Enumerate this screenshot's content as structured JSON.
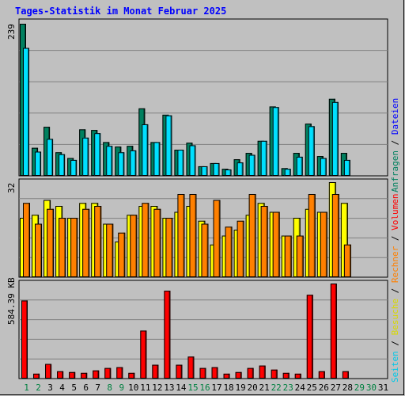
{
  "title": "Tages-Statistik im Monat Februar 2025",
  "colors": {
    "background": "#c0c0c0",
    "title": "#0000ff",
    "anfragen": "#00805f",
    "dateien": "#00e0ff",
    "besuche": "#ffff00",
    "rechner": "#ff8000",
    "volumen": "#ff0000",
    "weekday_label": "#000000",
    "weekend_label": "#008040"
  },
  "chart_data": [
    {
      "type": "bar",
      "panel": "hits_files",
      "axis_max_label": "239",
      "ylim": [
        0,
        239
      ],
      "categories": [
        "1",
        "2",
        "3",
        "4",
        "5",
        "6",
        "7",
        "8",
        "9",
        "10",
        "11",
        "12",
        "13",
        "14",
        "15",
        "16",
        "17",
        "18",
        "19",
        "20",
        "21",
        "22",
        "23",
        "24",
        "25",
        "26",
        "27",
        "28",
        "29",
        "30",
        "31"
      ],
      "series": [
        {
          "name": "Anfragen",
          "values": [
            239,
            44,
            77,
            37,
            28,
            73,
            72,
            53,
            46,
            47,
            106,
            53,
            96,
            41,
            52,
            15,
            20,
            11,
            26,
            36,
            55,
            109,
            12,
            36,
            82,
            31,
            121,
            36,
            0,
            0,
            0
          ]
        },
        {
          "name": "Dateien",
          "values": [
            201,
            38,
            58,
            34,
            25,
            60,
            67,
            47,
            37,
            40,
            81,
            53,
            95,
            41,
            48,
            15,
            20,
            10,
            21,
            33,
            55,
            108,
            11,
            30,
            78,
            28,
            116,
            25,
            0,
            0,
            0
          ]
        }
      ],
      "legend": [
        "Anfragen",
        "Dateien"
      ],
      "grid": true
    },
    {
      "type": "bar",
      "panel": "visits",
      "axis_max_label": "32",
      "ylim": [
        0,
        32
      ],
      "categories": [
        "1",
        "2",
        "3",
        "4",
        "5",
        "6",
        "7",
        "8",
        "9",
        "10",
        "11",
        "12",
        "13",
        "14",
        "15",
        "16",
        "17",
        "18",
        "19",
        "20",
        "21",
        "22",
        "23",
        "24",
        "25",
        "26",
        "27",
        "28",
        "29",
        "30",
        "31"
      ],
      "series": [
        {
          "name": "Seiten",
          "values": [
            20,
            20,
            0,
            0,
            0,
            0,
            0,
            0,
            0,
            0,
            0,
            0,
            0,
            0,
            0,
            0,
            0,
            0,
            0,
            0,
            0,
            0,
            0,
            0,
            0,
            0,
            0,
            0,
            0,
            0,
            0
          ]
        },
        {
          "name": "Besuche",
          "values": [
            20,
            21,
            26,
            24,
            20,
            25,
            25,
            18,
            12,
            21,
            24,
            24,
            20,
            22,
            24,
            19,
            11,
            14,
            16,
            21,
            25,
            22,
            14,
            20,
            23,
            22,
            32,
            25,
            0,
            0,
            0
          ]
        },
        {
          "name": "Rechner",
          "values": [
            25,
            18,
            23,
            20,
            20,
            23,
            24,
            18,
            15,
            21,
            25,
            23,
            20,
            28,
            28,
            18,
            26,
            17,
            19,
            28,
            24,
            22,
            14,
            14,
            28,
            22,
            28,
            11,
            0,
            0,
            0
          ]
        }
      ],
      "legend": [
        "Seiten",
        "Besuche",
        "Rechner"
      ],
      "grid": true
    },
    {
      "type": "bar",
      "panel": "volume",
      "axis_max_label": "584.39 KB",
      "ylim": [
        0,
        584.39
      ],
      "categories": [
        "1",
        "2",
        "3",
        "4",
        "5",
        "6",
        "7",
        "8",
        "9",
        "10",
        "11",
        "12",
        "13",
        "14",
        "15",
        "16",
        "17",
        "18",
        "19",
        "20",
        "21",
        "22",
        "23",
        "24",
        "25",
        "26",
        "27",
        "28",
        "29",
        "30",
        "31"
      ],
      "series": [
        {
          "name": "Volumen",
          "values": [
            480,
            30,
            90,
            45,
            40,
            35,
            50,
            65,
            70,
            35,
            295,
            85,
            540,
            85,
            135,
            65,
            70,
            30,
            40,
            65,
            80,
            55,
            35,
            30,
            515,
            45,
            600,
            45,
            0,
            0,
            0
          ]
        }
      ],
      "legend": [
        "Volumen"
      ],
      "grid": true
    }
  ],
  "right_legend": {
    "top": [
      {
        "text": "Anfragen",
        "color": "#00805f"
      },
      {
        "text": " / ",
        "color": "#000000"
      },
      {
        "text": "Dateien",
        "color": "#0000ff"
      }
    ],
    "bottom": [
      {
        "text": "Seiten",
        "color": "#00c8e8"
      },
      {
        "text": " / ",
        "color": "#000000"
      },
      {
        "text": "Besuche",
        "color": "#d8d800"
      },
      {
        "text": " / ",
        "color": "#000000"
      },
      {
        "text": "Rechner",
        "color": "#ff8000"
      },
      {
        "text": " / ",
        "color": "#000000"
      },
      {
        "text": "Volumen",
        "color": "#ff0000"
      }
    ]
  },
  "weekend_days": [
    "1",
    "2",
    "8",
    "9",
    "15",
    "16",
    "22",
    "23",
    "29",
    "30"
  ]
}
